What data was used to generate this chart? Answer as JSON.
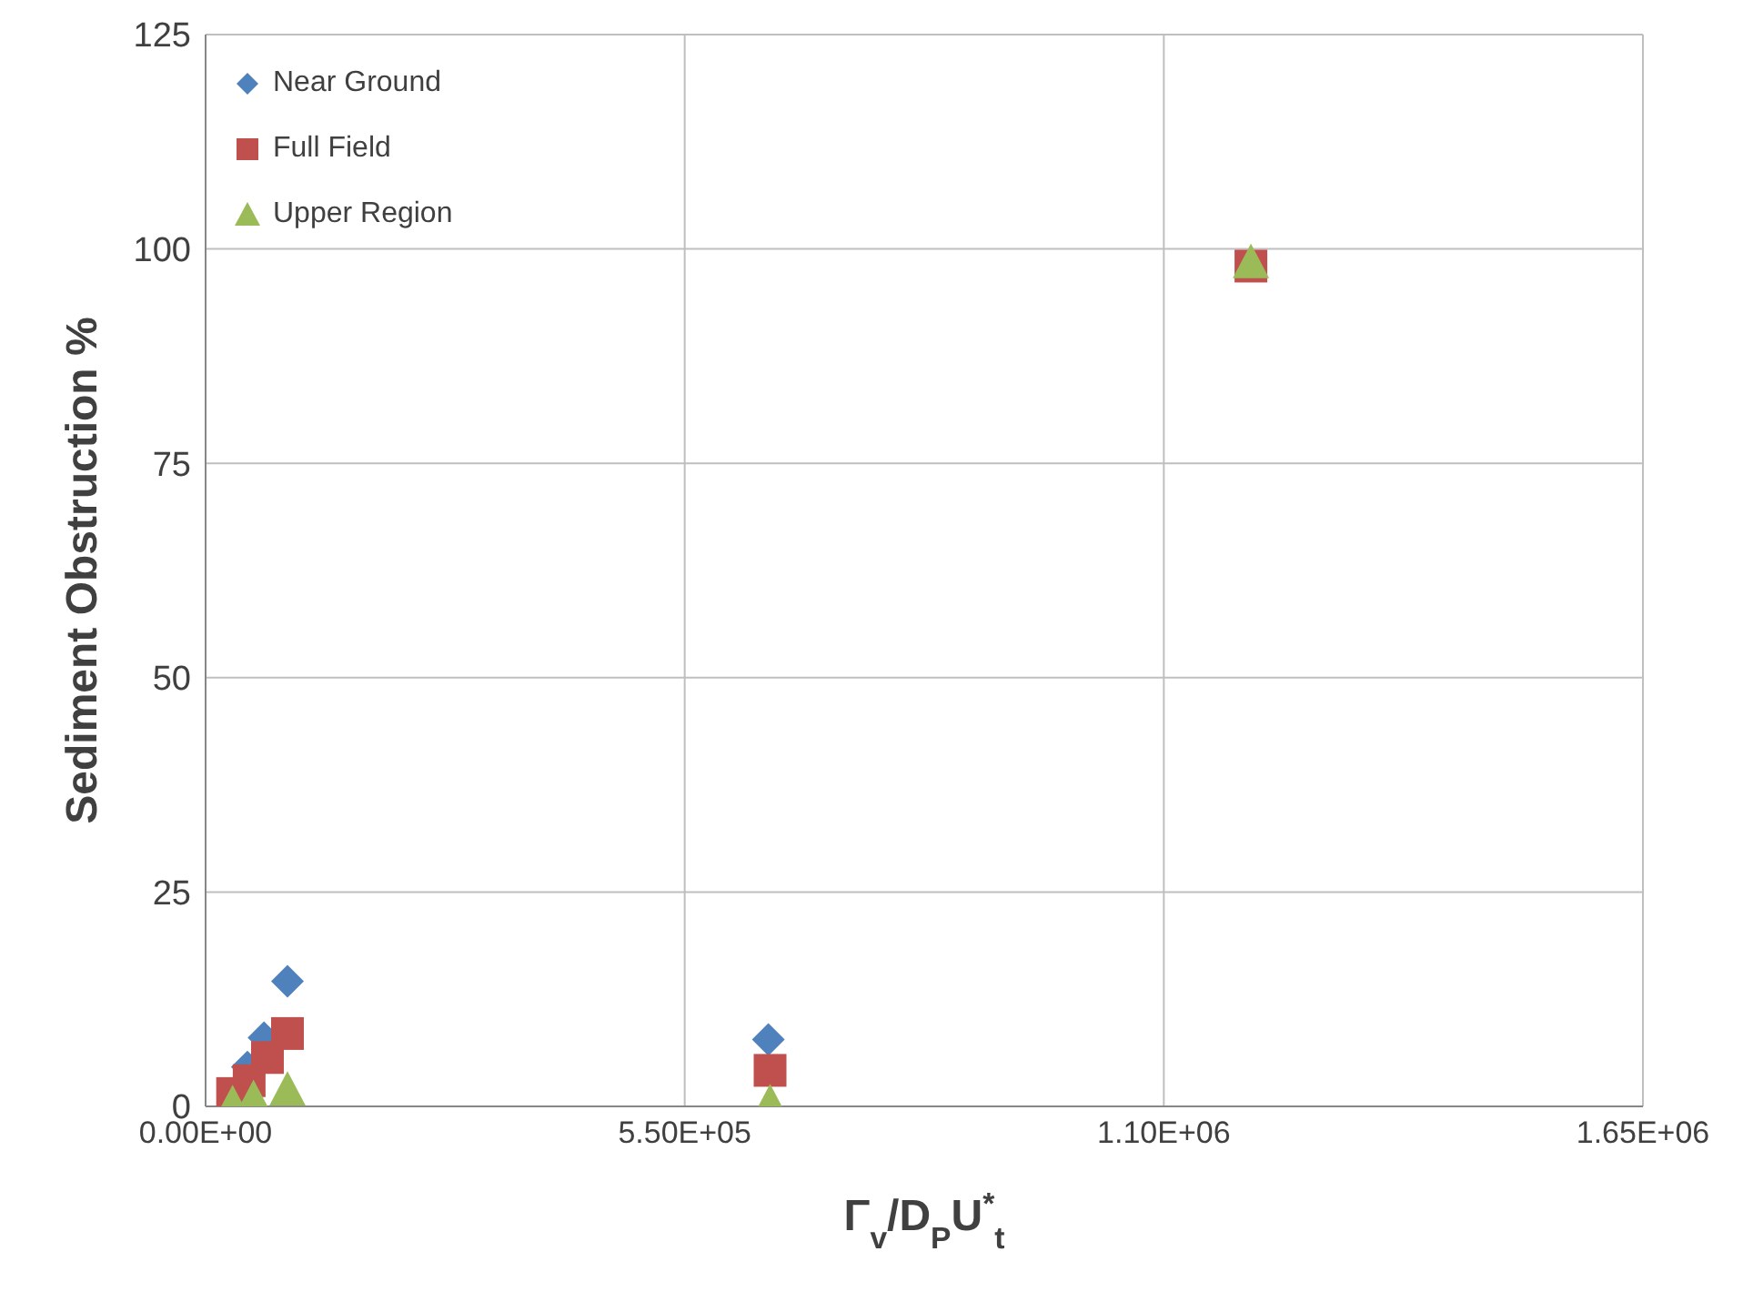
{
  "chart_data": {
    "type": "scatter",
    "xlabel": "Γ$_{v}$/D$_{P}$U$^{*}$$_{t}$",
    "ylabel": "Sediment Obstruction %",
    "xlim": [
      0,
      1650000
    ],
    "xticks": [
      {
        "value": 0,
        "label": "0.00E+00"
      },
      {
        "value": 550000,
        "label": "5.50E+05"
      },
      {
        "value": 1100000,
        "label": "1.10E+06"
      },
      {
        "value": 1650000,
        "label": "1.65E+06"
      }
    ],
    "ylim": [
      0,
      125
    ],
    "yticks": [
      0,
      25,
      50,
      75,
      100,
      125
    ],
    "grid": true,
    "legend": "top left",
    "series": [
      {
        "name": "Near Ground",
        "color": "#4f81bd",
        "marker": "diamond",
        "x": [
          48000,
          67000,
          94000,
          646000
        ],
        "values": [
          4.6,
          8,
          14.6,
          7.8
        ]
      },
      {
        "name": "Full Field",
        "color": "#c0504d",
        "marker": "square",
        "x": [
          31000,
          50000,
          71000,
          94000,
          648000,
          1200000
        ],
        "values": [
          1.5,
          3,
          5.7,
          8.5,
          4.2,
          98
        ]
      },
      {
        "name": "Upper Region",
        "color": "#9bbb59",
        "marker": "triangle",
        "x": [
          31000,
          55000,
          94000,
          648000,
          1200000
        ],
        "values": [
          0.4,
          1,
          2,
          0.5,
          98.5
        ]
      }
    ]
  }
}
